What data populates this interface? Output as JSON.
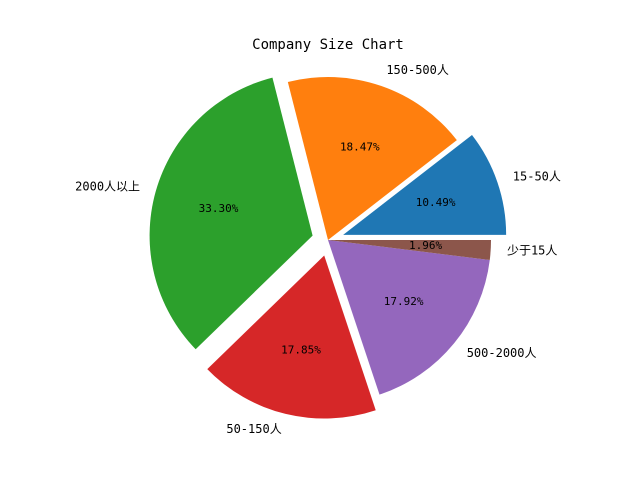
{
  "chart_data": {
    "type": "pie",
    "title": "Company Size Chart",
    "start_angle_deg": 0,
    "direction": "counterclockwise",
    "slices": [
      {
        "label": "15-50人",
        "value": 10.49,
        "pct_label": "10.49%",
        "color": "#1f77b4",
        "exploded": true
      },
      {
        "label": "150-500人",
        "value": 18.47,
        "pct_label": "18.47%",
        "color": "#ff7f0e",
        "exploded": false
      },
      {
        "label": "2000人以上",
        "value": 33.3,
        "pct_label": "33.30%",
        "color": "#2ca02c",
        "exploded": true
      },
      {
        "label": "50-150人",
        "value": 17.85,
        "pct_label": "17.85%",
        "color": "#d62728",
        "exploded": true
      },
      {
        "label": "500-2000人",
        "value": 17.92,
        "pct_label": "17.92%",
        "color": "#9467bd",
        "exploded": false
      },
      {
        "label": "少于15人",
        "value": 1.96,
        "pct_label": "1.96%",
        "color": "#8c564b",
        "exploded": false
      }
    ]
  }
}
